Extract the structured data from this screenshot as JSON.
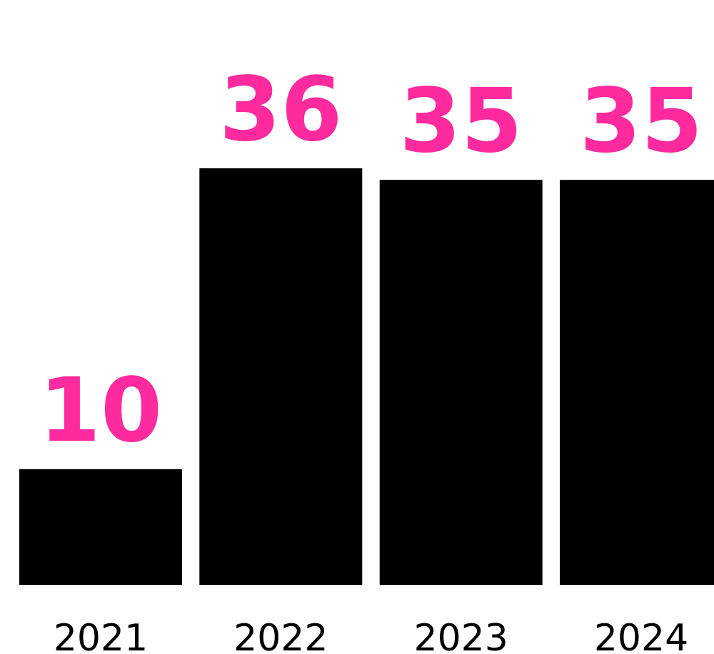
{
  "chart_data": {
    "type": "bar",
    "categories": [
      "2021",
      "2022",
      "2023",
      "2024"
    ],
    "values": [
      10,
      36,
      35,
      35
    ],
    "data_labels": [
      "10",
      "36",
      "35",
      "35"
    ],
    "title": "",
    "xlabel": "",
    "ylabel": "",
    "ylim": [
      0,
      36
    ],
    "grid": false,
    "legend": "none",
    "bar_color": "#000000",
    "label_color": "#ff2a9d",
    "tick_color": "#000000"
  }
}
